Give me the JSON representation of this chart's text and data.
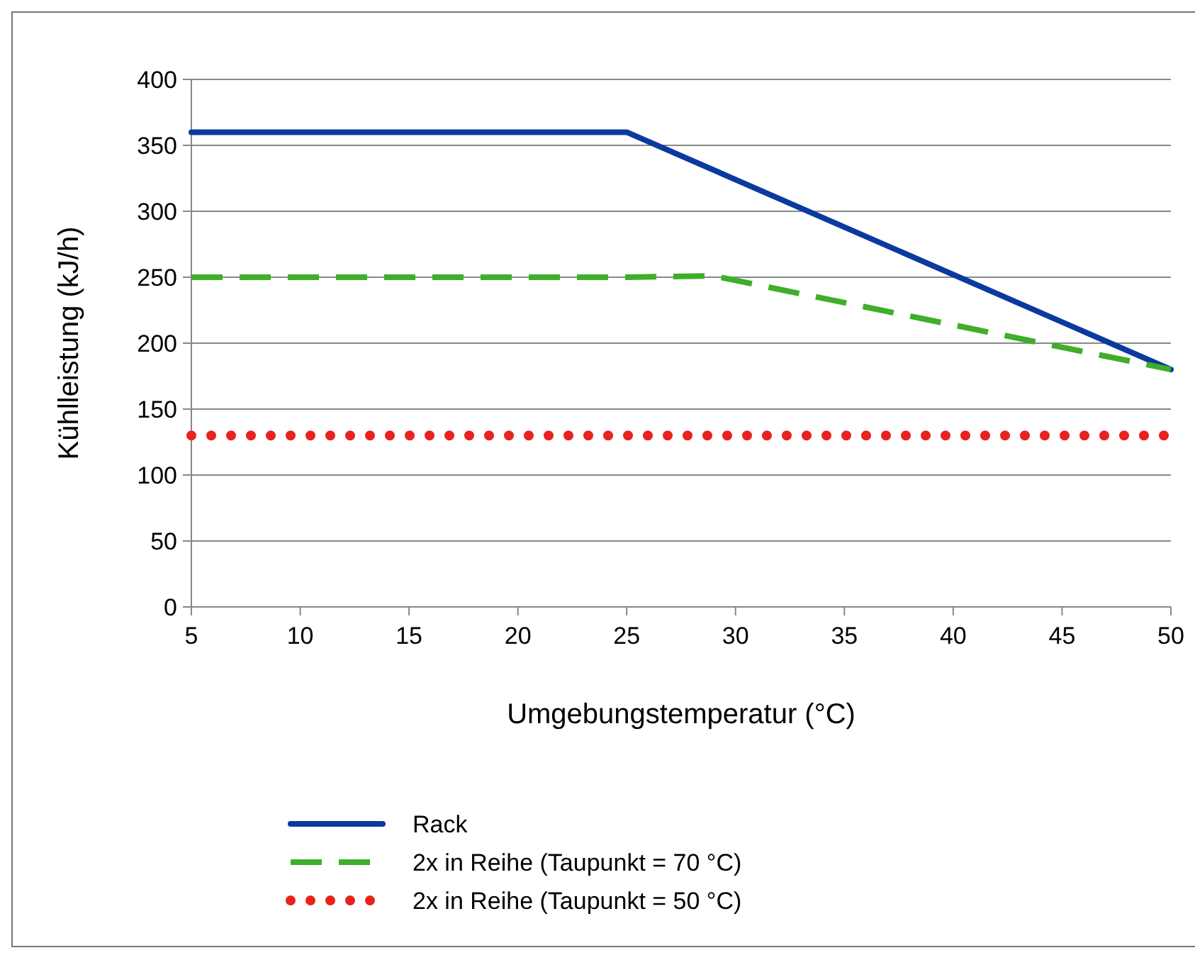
{
  "chart_data": {
    "type": "line",
    "xlabel": "Umgebungstemperatur (°C)",
    "ylabel": "Kühlleistung (kJ/h)",
    "xlim": [
      5,
      50
    ],
    "xticks": [
      5,
      10,
      15,
      20,
      25,
      30,
      35,
      40,
      45,
      50
    ],
    "ylim": [
      0,
      400
    ],
    "yticks": [
      0,
      50,
      100,
      150,
      200,
      250,
      300,
      350,
      400
    ],
    "grid": "y",
    "legend": "bottom",
    "series": [
      {
        "name": "Rack",
        "color": "#0a3a9e",
        "line_style": "solid",
        "x": [
          5,
          25,
          50
        ],
        "values": [
          360,
          360,
          180
        ]
      },
      {
        "name": "2x in Reihe (Taupunkt = 70 °C)",
        "color": "#3fae2a",
        "line_style": "dashed",
        "x": [
          5,
          25,
          29,
          50
        ],
        "values": [
          250,
          250,
          251,
          180
        ]
      },
      {
        "name": "2x in Reihe (Taupunkt = 50 °C)",
        "color": "#e8231d",
        "line_style": "dotted",
        "x": [
          5,
          50
        ],
        "values": [
          130,
          130
        ]
      }
    ]
  }
}
